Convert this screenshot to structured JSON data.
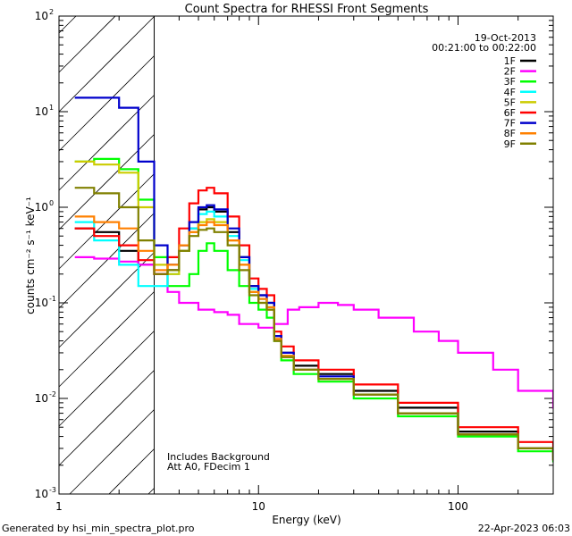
{
  "chart_data": {
    "type": "line",
    "title": "Count Spectra for RHESSI Front Segments",
    "xlabel": "Energy (keV)",
    "ylabel": "counts cm⁻² s⁻¹ keV⁻¹",
    "xscale": "log",
    "yscale": "log",
    "xlim": [
      1,
      300
    ],
    "ylim": [
      0.001,
      100
    ],
    "xticks": [
      {
        "value": 1,
        "label": "1"
      },
      {
        "value": 10,
        "label": "10"
      },
      {
        "value": 100,
        "label": "100"
      }
    ],
    "yticks": [
      {
        "value": 0.001,
        "mantissa": "10",
        "exp": "-3"
      },
      {
        "value": 0.01,
        "mantissa": "10",
        "exp": "-2"
      },
      {
        "value": 0.1,
        "mantissa": "10",
        "exp": "-1"
      },
      {
        "value": 1,
        "mantissa": "10",
        "exp": "0"
      },
      {
        "value": 10,
        "mantissa": "10",
        "exp": "1"
      },
      {
        "value": 100,
        "mantissa": "10",
        "exp": "2"
      }
    ],
    "date": "19-Oct-2013",
    "time_range": "00:21:00 to 00:22:00",
    "excluded_region_max_kev": 3,
    "annotations": [
      "Includes Background",
      "Att A0, FDecim 1"
    ],
    "series": [
      {
        "name": "1F",
        "color": "#000000",
        "x": [
          1.2,
          1.5,
          2.0,
          2.5,
          3.0,
          3.5,
          4.0,
          4.5,
          5.0,
          5.5,
          6.0,
          7.0,
          8.0,
          9.0,
          10,
          11,
          12,
          13,
          15,
          20,
          30,
          50,
          100,
          200,
          300
        ],
        "y": [
          0.6,
          0.55,
          0.35,
          0.25,
          0.2,
          0.22,
          0.35,
          0.6,
          0.95,
          1.0,
          0.9,
          0.55,
          0.3,
          0.15,
          0.12,
          0.1,
          0.045,
          0.03,
          0.022,
          0.018,
          0.012,
          0.008,
          0.0045,
          0.003,
          0.0025
        ]
      },
      {
        "name": "2F",
        "color": "#ff00ff",
        "x": [
          1.2,
          1.5,
          2.0,
          2.5,
          3.0,
          3.5,
          4.0,
          5.0,
          6.0,
          7.0,
          8.0,
          10,
          12,
          14,
          16,
          20,
          25,
          30,
          40,
          60,
          80,
          100,
          150,
          200,
          300
        ],
        "y": [
          0.3,
          0.29,
          0.27,
          0.25,
          0.2,
          0.13,
          0.1,
          0.085,
          0.08,
          0.075,
          0.06,
          0.055,
          0.06,
          0.085,
          0.09,
          0.1,
          0.095,
          0.085,
          0.07,
          0.05,
          0.04,
          0.03,
          0.02,
          0.012,
          0.008
        ]
      },
      {
        "name": "3F",
        "color": "#00ff00",
        "x": [
          1.2,
          1.5,
          2.0,
          2.5,
          3.0,
          3.5,
          4.0,
          4.5,
          5.0,
          5.5,
          6.0,
          7.0,
          8.0,
          9.0,
          10,
          11,
          12,
          13,
          15,
          20,
          30,
          50,
          100,
          200,
          300
        ],
        "y": [
          3.0,
          3.2,
          2.5,
          1.2,
          0.3,
          0.15,
          0.15,
          0.2,
          0.35,
          0.42,
          0.35,
          0.22,
          0.15,
          0.1,
          0.085,
          0.07,
          0.04,
          0.025,
          0.018,
          0.015,
          0.01,
          0.0065,
          0.004,
          0.0028,
          0.0022
        ]
      },
      {
        "name": "4F",
        "color": "#00ffff",
        "x": [
          1.2,
          1.5,
          2.0,
          2.5,
          3.0,
          3.5,
          4.0,
          4.5,
          5.0,
          5.5,
          6.0,
          7.0,
          8.0,
          9.0,
          10,
          11,
          12,
          13,
          15,
          20,
          30,
          50,
          100,
          200,
          300
        ],
        "y": [
          0.7,
          0.45,
          0.25,
          0.15,
          0.15,
          0.2,
          0.35,
          0.6,
          0.85,
          0.9,
          0.8,
          0.5,
          0.28,
          0.14,
          0.11,
          0.09,
          0.04,
          0.028,
          0.02,
          0.016,
          0.011,
          0.007,
          0.0042,
          0.003,
          0.0023
        ]
      },
      {
        "name": "5F",
        "color": "#cccc00",
        "x": [
          1.2,
          1.5,
          2.0,
          2.5,
          3.0,
          3.5,
          4.0,
          4.5,
          5.0,
          5.5,
          6.0,
          7.0,
          8.0,
          9.0,
          10,
          11,
          12,
          13,
          15,
          20,
          30,
          50,
          100,
          200,
          300
        ],
        "y": [
          3.0,
          2.8,
          2.3,
          1.0,
          0.25,
          0.2,
          0.35,
          0.55,
          0.7,
          0.75,
          0.7,
          0.45,
          0.25,
          0.13,
          0.1,
          0.085,
          0.04,
          0.027,
          0.02,
          0.016,
          0.011,
          0.007,
          0.0042,
          0.003,
          0.0023
        ]
      },
      {
        "name": "6F",
        "color": "#ff0000",
        "x": [
          1.2,
          1.5,
          2.0,
          2.5,
          3.0,
          3.5,
          4.0,
          4.5,
          5.0,
          5.5,
          6.0,
          7.0,
          8.0,
          9.0,
          10,
          11,
          12,
          13,
          15,
          20,
          30,
          50,
          100,
          200,
          300
        ],
        "y": [
          0.6,
          0.5,
          0.4,
          0.28,
          0.2,
          0.3,
          0.6,
          1.1,
          1.5,
          1.6,
          1.4,
          0.8,
          0.4,
          0.18,
          0.14,
          0.12,
          0.05,
          0.035,
          0.025,
          0.02,
          0.014,
          0.009,
          0.005,
          0.0035,
          0.0028
        ]
      },
      {
        "name": "7F",
        "color": "#0000cc",
        "x": [
          1.2,
          1.5,
          2.0,
          2.5,
          3.0,
          3.5,
          4.0,
          4.5,
          5.0,
          5.5,
          6.0,
          7.0,
          8.0,
          9.0,
          10,
          11,
          12,
          13,
          15,
          20,
          30,
          50,
          100,
          200,
          300
        ],
        "y": [
          14,
          14,
          11,
          3.0,
          0.4,
          0.25,
          0.4,
          0.7,
          1.0,
          1.05,
          0.95,
          0.6,
          0.3,
          0.15,
          0.12,
          0.1,
          0.045,
          0.03,
          0.02,
          0.017,
          0.011,
          0.007,
          0.0042,
          0.003,
          0.0023
        ]
      },
      {
        "name": "8F",
        "color": "#ff8000",
        "x": [
          1.2,
          1.5,
          2.0,
          2.5,
          3.0,
          3.5,
          4.0,
          4.5,
          5.0,
          5.5,
          6.0,
          7.0,
          8.0,
          9.0,
          10,
          11,
          12,
          13,
          15,
          20,
          30,
          50,
          100,
          200,
          300
        ],
        "y": [
          0.8,
          0.7,
          0.6,
          0.35,
          0.22,
          0.25,
          0.4,
          0.55,
          0.65,
          0.7,
          0.65,
          0.45,
          0.25,
          0.13,
          0.11,
          0.09,
          0.042,
          0.028,
          0.02,
          0.016,
          0.011,
          0.007,
          0.0042,
          0.003,
          0.0023
        ]
      },
      {
        "name": "9F",
        "color": "#808000",
        "x": [
          1.2,
          1.5,
          2.0,
          2.5,
          3.0,
          3.5,
          4.0,
          4.5,
          5.0,
          5.5,
          6.0,
          7.0,
          8.0,
          9.0,
          10,
          11,
          12,
          13,
          15,
          20,
          30,
          50,
          100,
          200,
          300
        ],
        "y": [
          1.6,
          1.4,
          1.0,
          0.45,
          0.2,
          0.22,
          0.35,
          0.5,
          0.58,
          0.6,
          0.55,
          0.4,
          0.22,
          0.12,
          0.1,
          0.085,
          0.04,
          0.027,
          0.02,
          0.016,
          0.011,
          0.007,
          0.0042,
          0.003,
          0.0023
        ]
      }
    ]
  },
  "footer": {
    "left": "Generated by hsi_min_spectra_plot.pro",
    "right": "22-Apr-2023 06:03"
  }
}
